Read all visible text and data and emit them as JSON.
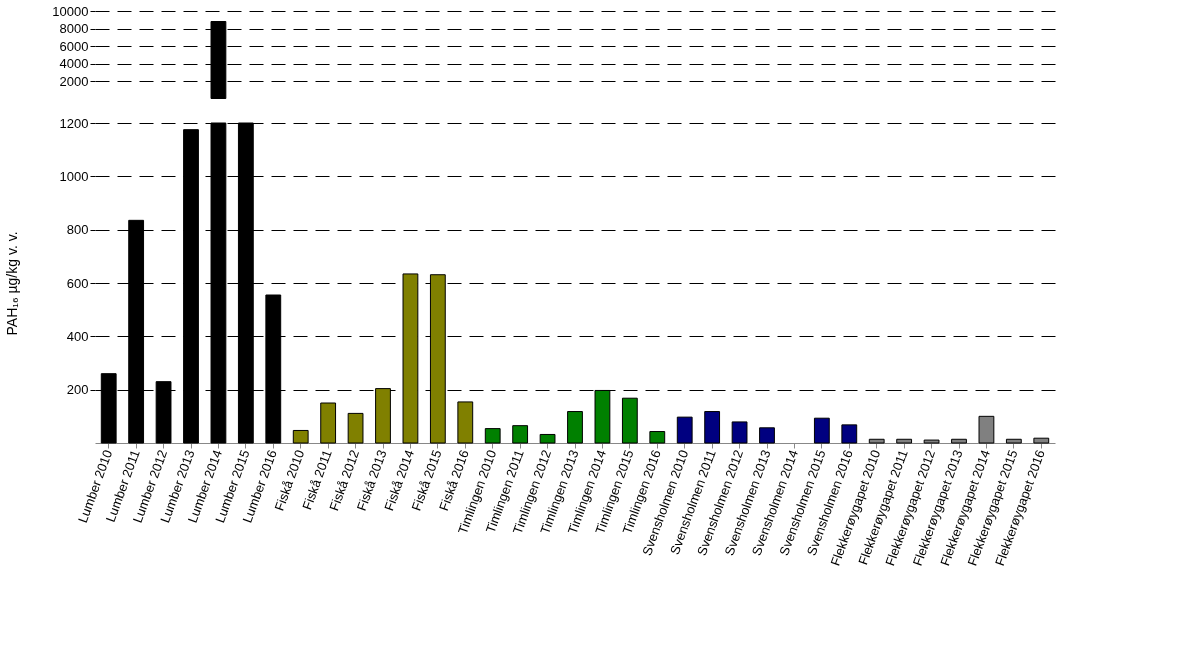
{
  "chart_data": [
    {
      "type": "bar",
      "values": [
        null,
        null,
        null,
        null,
        8800,
        null,
        null,
        null,
        null,
        null,
        null,
        null,
        null,
        null,
        null,
        null,
        null,
        null,
        null,
        null,
        null,
        null,
        null,
        null,
        null,
        null,
        null,
        null,
        null,
        null,
        null,
        null,
        null,
        null,
        null
      ],
      "colors": [
        "#000000",
        "#000000",
        "#000000",
        "#000000",
        "#000000",
        "#000000",
        "#000000",
        "#808000",
        "#808000",
        "#808000",
        "#808000",
        "#808000",
        "#808000",
        "#808000",
        "#008000",
        "#008000",
        "#008000",
        "#008000",
        "#008000",
        "#008000",
        "#008000",
        "#000080",
        "#000080",
        "#000080",
        "#000080",
        "#000080",
        "#000080",
        "#000080",
        "#808080",
        "#808080",
        "#808080",
        "#808080",
        "#808080",
        "#808080",
        "#808080"
      ],
      "ylim": [
        2000,
        10000
      ],
      "yticks": [
        2000,
        4000,
        6000,
        8000,
        10000
      ],
      "grid": "y",
      "tick_labels": "y"
    },
    {
      "type": "bar",
      "ylabel": "PAH₁₆ µg/kg v. v.",
      "categories": [
        "Lumber 2010",
        "Lumber 2011",
        "Lumber 2012",
        "Lumber 2013",
        "Lumber 2014",
        "Lumber 2015",
        "Lumber 2016",
        "Fiskå 2010",
        "Fiskå 2011",
        "Fiskå 2012",
        "Fiskå 2013",
        "Fiskå 2014",
        "Fiskå 2015",
        "Fiskå 2016",
        "Timlingen 2010",
        "Timlingen 2011",
        "Timlingen 2012",
        "Timlingen 2013",
        "Timlingen 2014",
        "Timlingen 2015",
        "Timlingen 2016",
        "Svensholmen 2010",
        "Svensholmen 2011",
        "Svensholmen 2012",
        "Svensholmen 2013",
        "Svensholmen 2014",
        "Svensholmen 2015",
        "Svensholmen 2016",
        "Flekkerøygapet 2010",
        "Flekkerøygapet 2011",
        "Flekkerøygapet 2012",
        "Flekkerøygapet 2013",
        "Flekkerøygapet 2014",
        "Flekkerøygapet 2015",
        "Flekkerøygapet 2016"
      ],
      "values": [
        260,
        835,
        230,
        1175,
        1200,
        1200,
        555,
        47,
        150,
        111,
        204,
        634,
        631,
        154,
        54,
        65,
        32,
        118,
        197,
        168,
        43,
        97,
        118,
        79,
        57,
        null,
        93,
        68,
        14,
        14,
        11,
        14,
        100,
        14,
        18
      ],
      "colors": [
        "#000000",
        "#000000",
        "#000000",
        "#000000",
        "#000000",
        "#000000",
        "#000000",
        "#808000",
        "#808000",
        "#808000",
        "#808000",
        "#808000",
        "#808000",
        "#808000",
        "#008000",
        "#008000",
        "#008000",
        "#008000",
        "#008000",
        "#008000",
        "#008000",
        "#000080",
        "#000080",
        "#000080",
        "#000080",
        "#000080",
        "#000080",
        "#000080",
        "#808080",
        "#808080",
        "#808080",
        "#808080",
        "#808080",
        "#808080",
        "#808080"
      ],
      "ylim": [
        0,
        1200
      ],
      "yticks": [
        200,
        400,
        600,
        800,
        1000,
        1200
      ],
      "grid": "y"
    }
  ]
}
